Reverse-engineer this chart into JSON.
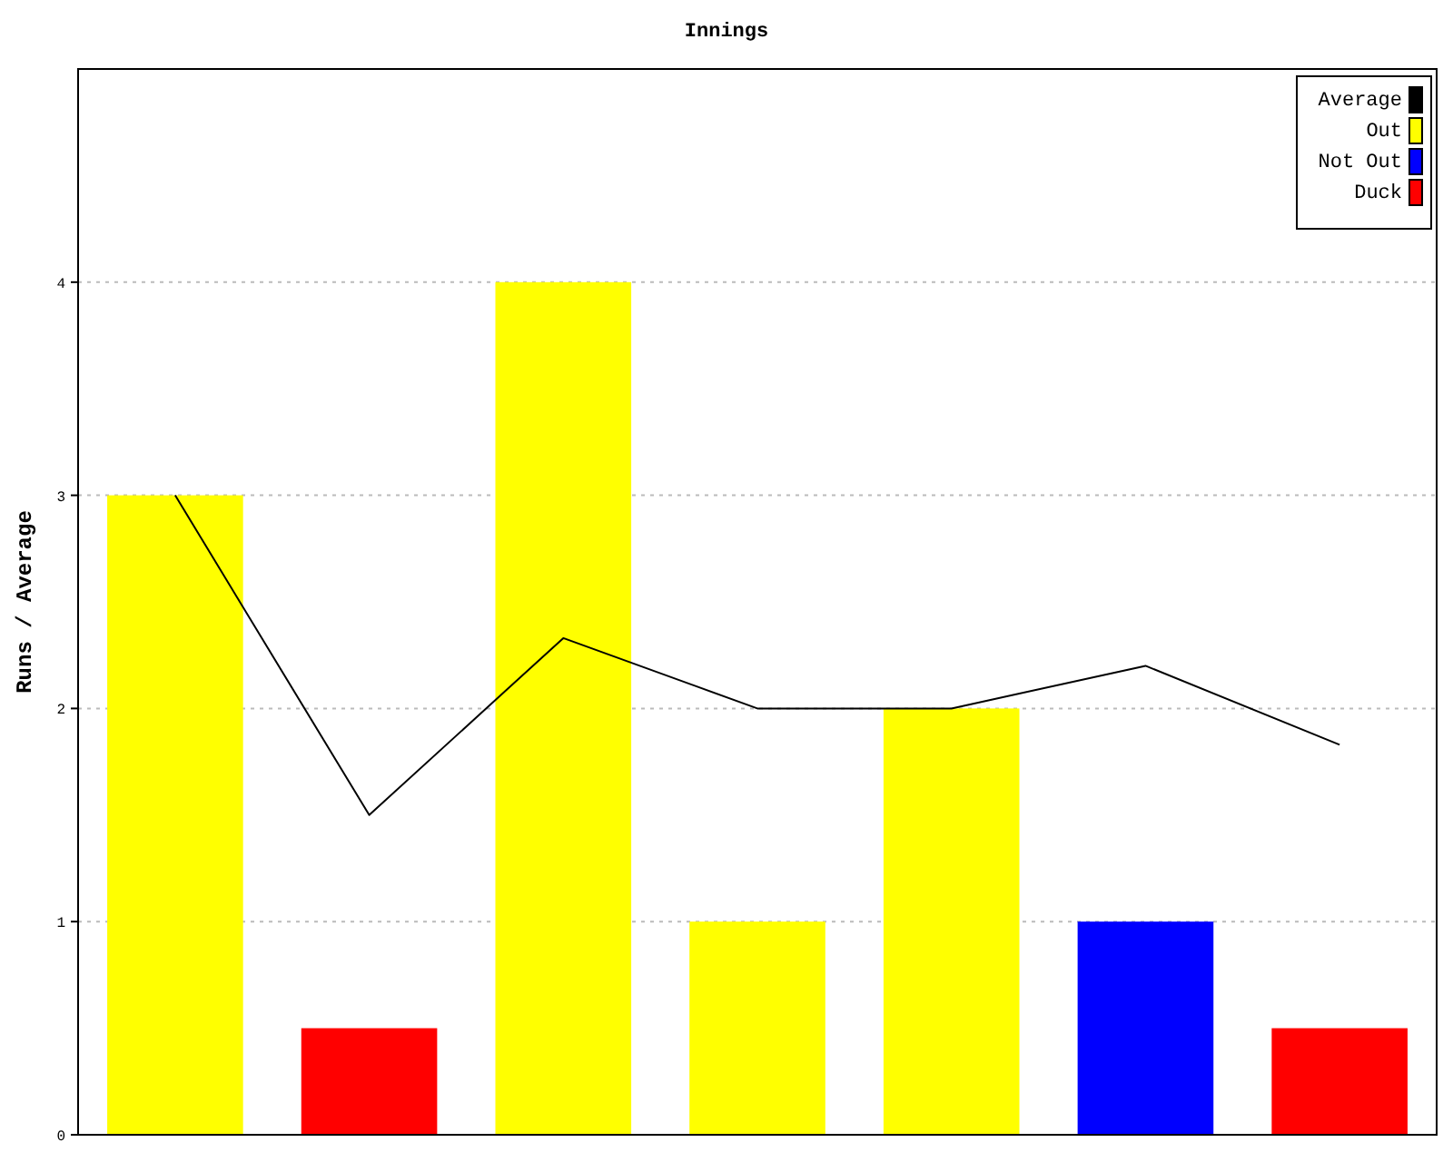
{
  "chart_data": {
    "type": "bar",
    "title": "Innings",
    "ylabel": "Runs / Average",
    "categories": [
      null,
      null,
      null,
      null,
      null,
      null,
      null
    ],
    "series": [
      {
        "name": "Average",
        "type": "line",
        "color": "#000000",
        "values": [
          3,
          1.5,
          2.33,
          2,
          2,
          2.2,
          1.83
        ]
      },
      {
        "name": "Out",
        "color": "#ffff00",
        "values": [
          3,
          null,
          4,
          1,
          2,
          null,
          null
        ]
      },
      {
        "name": "Not Out",
        "color": "#0000ff",
        "values": [
          null,
          null,
          null,
          null,
          null,
          1,
          null
        ]
      },
      {
        "name": "Duck",
        "color": "#ff0000",
        "values": [
          null,
          0.5,
          null,
          null,
          null,
          null,
          0.5
        ]
      }
    ],
    "ylim": [
      0,
      5
    ],
    "yticks": [
      0,
      1,
      2,
      3,
      4
    ],
    "grid": "y",
    "legend": "top right",
    "marker": "none"
  }
}
